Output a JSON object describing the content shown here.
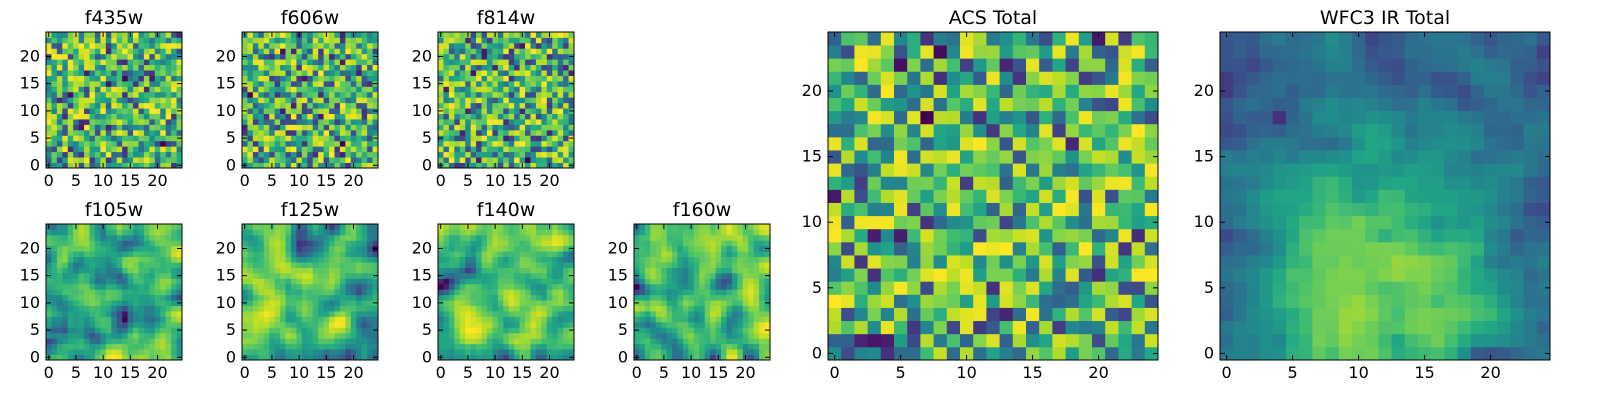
{
  "chart_data": [
    {
      "type": "heatmap",
      "title": "f435w",
      "size": 25,
      "xticks": [
        0,
        5,
        10,
        15,
        20
      ],
      "yticks": [
        0,
        5,
        10,
        15,
        20
      ],
      "xlim": [
        -0.5,
        24.5
      ],
      "ylim": [
        -0.5,
        24.5
      ],
      "colormap": "viridis",
      "seed": 11,
      "smooth": 0,
      "trend": "none"
    },
    {
      "type": "heatmap",
      "title": "f606w",
      "size": 25,
      "xticks": [
        0,
        5,
        10,
        15,
        20
      ],
      "yticks": [
        0,
        5,
        10,
        15,
        20
      ],
      "xlim": [
        -0.5,
        24.5
      ],
      "ylim": [
        -0.5,
        24.5
      ],
      "colormap": "viridis",
      "seed": 23,
      "smooth": 0,
      "trend": "none"
    },
    {
      "type": "heatmap",
      "title": "f814w",
      "size": 25,
      "xticks": [
        0,
        5,
        10,
        15,
        20
      ],
      "yticks": [
        0,
        5,
        10,
        15,
        20
      ],
      "xlim": [
        -0.5,
        24.5
      ],
      "ylim": [
        -0.5,
        24.5
      ],
      "colormap": "viridis",
      "seed": 37,
      "smooth": 0,
      "trend": "none"
    },
    {
      "type": "heatmap",
      "title": "f105w",
      "size": 25,
      "xticks": [
        0,
        5,
        10,
        15,
        20
      ],
      "yticks": [
        0,
        5,
        10,
        15,
        20
      ],
      "xlim": [
        -0.5,
        24.5
      ],
      "ylim": [
        -0.5,
        24.5
      ],
      "colormap": "viridis",
      "seed": 41,
      "smooth": 2,
      "trend": "none"
    },
    {
      "type": "heatmap",
      "title": "f125w",
      "size": 25,
      "xticks": [
        0,
        5,
        10,
        15,
        20
      ],
      "yticks": [
        0,
        5,
        10,
        15,
        20
      ],
      "xlim": [
        -0.5,
        24.5
      ],
      "ylim": [
        -0.5,
        24.5
      ],
      "colormap": "viridis",
      "seed": 53,
      "smooth": 2,
      "trend": "none"
    },
    {
      "type": "heatmap",
      "title": "f140w",
      "size": 25,
      "xticks": [
        0,
        5,
        10,
        15,
        20
      ],
      "yticks": [
        0,
        5,
        10,
        15,
        20
      ],
      "xlim": [
        -0.5,
        24.5
      ],
      "ylim": [
        -0.5,
        24.5
      ],
      "colormap": "viridis",
      "seed": 67,
      "smooth": 2,
      "trend": "none"
    },
    {
      "type": "heatmap",
      "title": "f160w",
      "size": 25,
      "xticks": [
        0,
        5,
        10,
        15,
        20
      ],
      "yticks": [
        0,
        5,
        10,
        15,
        20
      ],
      "xlim": [
        -0.5,
        24.5
      ],
      "ylim": [
        -0.5,
        24.5
      ],
      "colormap": "viridis",
      "seed": 79,
      "smooth": 2,
      "trend": "none"
    },
    {
      "type": "heatmap",
      "title": "ACS Total",
      "size": 25,
      "xticks": [
        0,
        5,
        10,
        15,
        20
      ],
      "yticks": [
        0,
        5,
        10,
        15,
        20
      ],
      "xlim": [
        -0.5,
        24.5
      ],
      "ylim": [
        -0.5,
        24.5
      ],
      "colormap": "viridis",
      "seed": 97,
      "smooth": 0,
      "trend": "none"
    },
    {
      "type": "heatmap",
      "title": "WFC3 IR Total",
      "size": 25,
      "xticks": [
        0,
        5,
        10,
        15,
        20
      ],
      "yticks": [
        0,
        5,
        10,
        15,
        20
      ],
      "xlim": [
        -0.5,
        24.5
      ],
      "ylim": [
        -0.5,
        24.5
      ],
      "colormap": "viridis",
      "seed": 101,
      "smooth": 1,
      "trend": "lower-center"
    }
  ]
}
